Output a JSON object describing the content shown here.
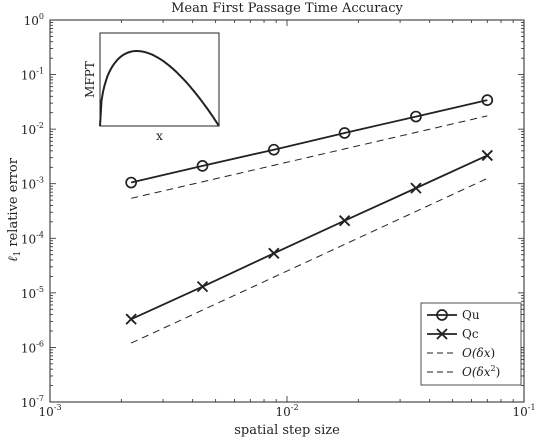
{
  "chart_data": {
    "type": "line",
    "title": "Mean First Passage Time Accuracy",
    "xlabel": "spatial step size",
    "ylabel_symbol": "ℓ",
    "ylabel_sub": "1",
    "ylabel_rest": " relative error",
    "x_scale": "log",
    "y_scale": "log",
    "xlim": [
      0.001,
      0.1
    ],
    "ylim": [
      1e-07,
      1
    ],
    "x_ticks": [
      {
        "base": "10",
        "exp": "-3",
        "value": 0.001
      },
      {
        "base": "10",
        "exp": "-2",
        "value": 0.01
      },
      {
        "base": "10",
        "exp": "-1",
        "value": 0.1
      }
    ],
    "y_ticks": [
      {
        "base": "10",
        "exp": "0",
        "value": 1
      },
      {
        "base": "10",
        "exp": "-1",
        "value": 0.1
      },
      {
        "base": "10",
        "exp": "-2",
        "value": 0.01
      },
      {
        "base": "10",
        "exp": "-3",
        "value": 0.001
      },
      {
        "base": "10",
        "exp": "-4",
        "value": 0.0001
      },
      {
        "base": "10",
        "exp": "-5",
        "value": 1e-05
      },
      {
        "base": "10",
        "exp": "-6",
        "value": 1e-06
      },
      {
        "base": "10",
        "exp": "-7",
        "value": 1e-07
      }
    ],
    "grid": false,
    "legend_position": "bottom-right",
    "series": [
      {
        "name": "Qu",
        "style": "solid",
        "marker": "circle",
        "color": "#222222",
        "x": [
          0.0022,
          0.0044,
          0.0088,
          0.0175,
          0.035,
          0.07
        ],
        "y": [
          0.00105,
          0.00212,
          0.0042,
          0.0085,
          0.017,
          0.034
        ]
      },
      {
        "name": "Qc",
        "style": "solid",
        "marker": "x",
        "color": "#222222",
        "x": [
          0.0022,
          0.0044,
          0.0088,
          0.0175,
          0.035,
          0.07
        ],
        "y": [
          3.3e-06,
          1.3e-05,
          5.3e-05,
          0.00021,
          0.00083,
          0.0033
        ]
      },
      {
        "name": "O(δx)",
        "name_main": "O(δx",
        "name_exp": "",
        "name_close": ")",
        "style": "dashed",
        "marker": "none",
        "color": "#222222",
        "x": [
          0.0022,
          0.07
        ],
        "y": [
          0.00054,
          0.0175
        ]
      },
      {
        "name": "O(δx²)",
        "name_main": "O(δx",
        "name_exp": "2",
        "name_close": ")",
        "style": "dashed",
        "marker": "none",
        "color": "#222222",
        "x": [
          0.0022,
          0.07
        ],
        "y": [
          1.2e-06,
          0.00125
        ]
      }
    ],
    "inset": {
      "ylabel": "MFPT",
      "xlabel": "x",
      "curve": "single-hump profile, zero at both ends, peak near x = 0.3"
    }
  }
}
